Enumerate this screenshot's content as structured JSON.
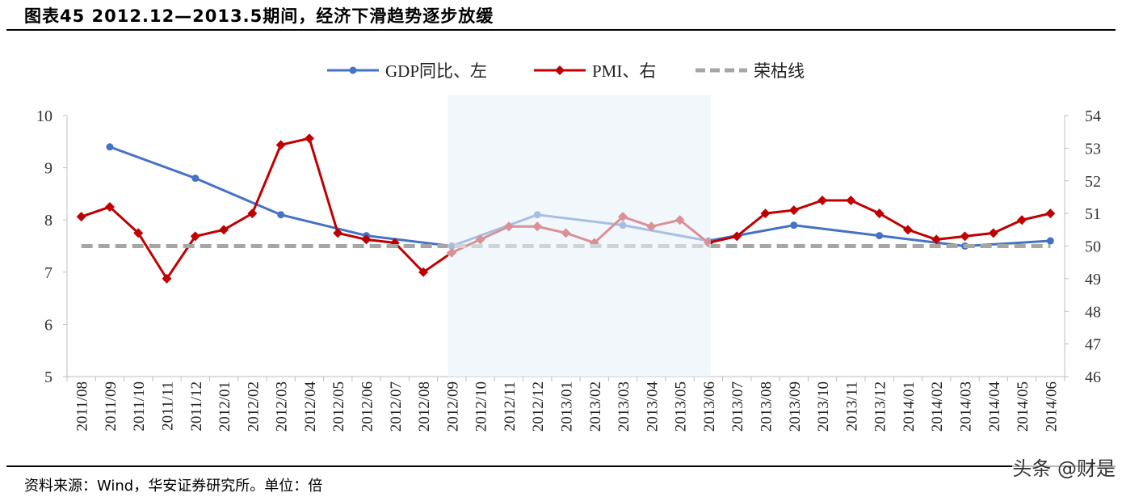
{
  "title": "图表45 2012.12—2013.5期间，经济下滑趋势逐步放缓",
  "source": "资料来源：Wind，华安证券研究所。单位：倍",
  "watermark": "头条 @财是",
  "chart_data": {
    "type": "line",
    "categories": [
      "2011/08",
      "2011/09",
      "2011/10",
      "2011/11",
      "2011/12",
      "2012/01",
      "2012/02",
      "2012/03",
      "2012/04",
      "2012/05",
      "2012/06",
      "2012/07",
      "2012/08",
      "2012/09",
      "2012/10",
      "2012/11",
      "2012/12",
      "2013/01",
      "2013/02",
      "2013/03",
      "2013/04",
      "2013/05",
      "2013/06",
      "2013/07",
      "2013/08",
      "2013/09",
      "2013/10",
      "2013/11",
      "2013/12",
      "2014/01",
      "2014/02",
      "2014/03",
      "2014/04",
      "2014/05",
      "2014/06"
    ],
    "series": [
      {
        "name": "GDP同比、左",
        "axis": "left",
        "color": "#4472C4",
        "marker": "circle",
        "values": [
          null,
          9.4,
          null,
          null,
          8.8,
          null,
          null,
          8.1,
          null,
          null,
          7.7,
          null,
          null,
          7.5,
          null,
          null,
          8.1,
          null,
          null,
          7.9,
          null,
          null,
          7.6,
          null,
          null,
          7.9,
          null,
          null,
          7.7,
          null,
          null,
          7.5,
          null,
          null,
          7.6
        ]
      },
      {
        "name": "PMI、右",
        "axis": "right",
        "color": "#C00000",
        "marker": "diamond",
        "values": [
          50.9,
          51.2,
          50.4,
          49.0,
          50.3,
          50.5,
          51.0,
          53.1,
          53.3,
          50.4,
          50.2,
          50.1,
          49.2,
          49.8,
          50.2,
          50.6,
          50.6,
          50.4,
          50.1,
          50.9,
          50.6,
          50.8,
          50.1,
          50.3,
          51.0,
          51.1,
          51.4,
          51.4,
          51.0,
          50.5,
          50.2,
          50.3,
          50.4,
          50.8,
          51.0
        ]
      },
      {
        "name": "荣枯线",
        "axis": "right",
        "color": "#A6A6A6",
        "dashed": true,
        "values": [
          50,
          50,
          50,
          50,
          50,
          50,
          50,
          50,
          50,
          50,
          50,
          50,
          50,
          50,
          50,
          50,
          50,
          50,
          50,
          50,
          50,
          50,
          50,
          50,
          50,
          50,
          50,
          50,
          50,
          50,
          50,
          50,
          50,
          50,
          50
        ]
      }
    ],
    "left_axis": {
      "ylim": [
        5,
        10
      ],
      "ticks": [
        "5",
        "6",
        "7",
        "8",
        "9",
        "10"
      ]
    },
    "right_axis": {
      "ylim": [
        46,
        54
      ],
      "ticks": [
        "46",
        "47",
        "48",
        "49",
        "50",
        "51",
        "52",
        "53",
        "54"
      ]
    },
    "highlight_range": [
      "2012/09",
      "2013/06"
    ],
    "highlight_color": "#EAF1FA",
    "legend": "top",
    "grid": false
  }
}
